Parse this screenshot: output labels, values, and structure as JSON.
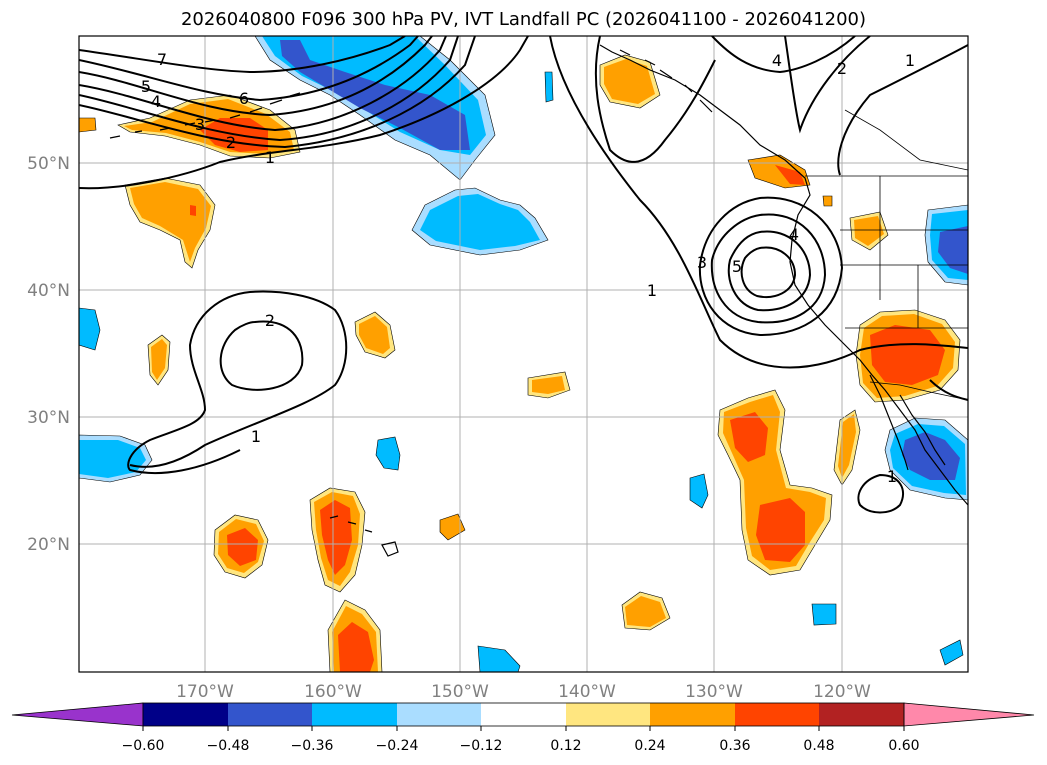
{
  "title": "2026040800 F096 300 hPa PV, IVT Landfall PC (2026041100 - 2026041200)",
  "lat_labels": [
    "50°N",
    "40°N",
    "30°N",
    "20°N"
  ],
  "lon_labels": [
    "170°W",
    "160°W",
    "150°W",
    "140°W",
    "130°W",
    "120°W"
  ],
  "colorbar": {
    "ticks": [
      "−0.60",
      "−0.48",
      "−0.36",
      "−0.24",
      "−0.12",
      "0.12",
      "0.24",
      "0.36",
      "0.48",
      "0.60"
    ],
    "colors": [
      "#9933cc",
      "#000088",
      "#3355cc",
      "#00bbff",
      "#aaddff",
      "#ffffff",
      "#ffe680",
      "#ffa000",
      "#ff4400",
      "#b22222",
      "#ff88aa"
    ]
  },
  "contour_labels": [
    "7",
    "6",
    "5",
    "4",
    "3",
    "2",
    "1",
    "2",
    "1",
    "1",
    "4",
    "2",
    "1",
    "3",
    "5",
    "4",
    "1"
  ],
  "colors": {
    "pos_light": "#ffe680",
    "pos_mid": "#ffa000",
    "pos_high": "#ff4400",
    "neg_light": "#aaddff",
    "neg_mid": "#00bbff",
    "neg_high": "#3355cc",
    "grid": "#b0b0b0",
    "axis_text": "#808080"
  }
}
